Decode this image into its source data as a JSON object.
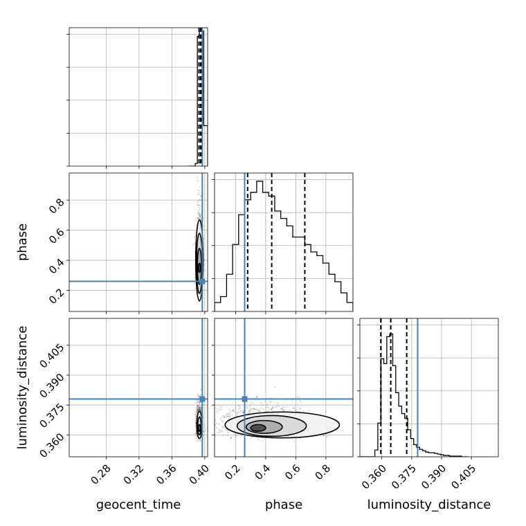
{
  "chart_data": {
    "type": "corner",
    "parameters": [
      "geocent_time",
      "phase",
      "luminosity_distance"
    ],
    "truth_color": "#4682b4",
    "truths": {
      "geocent_time": 0.397,
      "phase": 0.26,
      "luminosity_distance": 0.378
    },
    "quantiles": {
      "geocent_time": [
        0.393,
        0.395,
        0.3965
      ],
      "phase": [
        0.28,
        0.44,
        0.66
      ],
      "luminosity_distance": [
        0.3595,
        0.3645,
        0.3725
      ]
    },
    "panels": [
      {
        "id": "geocent_time-hist",
        "type": "histogram",
        "x": "geocent_time",
        "xlim": [
          0.235,
          0.4035
        ],
        "xticks": [
          0.28,
          0.32,
          0.36,
          0.4
        ],
        "xtick_labels": [
          "0.28",
          "0.32",
          "0.36",
          "0.40"
        ],
        "ymax": 0.0205,
        "bin_edges": [
          0.381,
          0.3835,
          0.386,
          0.3885,
          0.391,
          0.3935,
          0.396,
          0.3985,
          0.401,
          0.4035
        ],
        "counts": [
          0,
          0,
          0,
          0.0004,
          0.0192,
          0.02,
          0.02,
          0.006,
          0.006
        ],
        "quantile_lines": [
          0.393,
          0.395,
          0.3965
        ]
      },
      {
        "id": "phase-hist",
        "type": "histogram",
        "x": "phase",
        "xlim": [
          0.06,
          0.98
        ],
        "xticks": [
          0.2,
          0.4,
          0.6,
          0.8
        ],
        "ymax": 0.186,
        "bin_edges": [
          0.06,
          0.1,
          0.14,
          0.18,
          0.22,
          0.26,
          0.3,
          0.34,
          0.38,
          0.42,
          0.46,
          0.5,
          0.54,
          0.58,
          0.62,
          0.66,
          0.7,
          0.74,
          0.78,
          0.82,
          0.86,
          0.9,
          0.94,
          0.98
        ],
        "counts": [
          0.012,
          0.02,
          0.05,
          0.09,
          0.13,
          0.15,
          0.16,
          0.175,
          0.16,
          0.155,
          0.135,
          0.125,
          0.115,
          0.1,
          0.1,
          0.09,
          0.08,
          0.075,
          0.065,
          0.05,
          0.04,
          0.025,
          0.012
        ],
        "quantile_lines": [
          0.28,
          0.44,
          0.66
        ]
      },
      {
        "id": "luminosity_distance-hist",
        "type": "histogram",
        "x": "luminosity_distance",
        "xlim": [
          0.349,
          0.4185
        ],
        "xticks": [
          0.36,
          0.375,
          0.39,
          0.405
        ],
        "xtick_labels": [
          "0.360",
          "0.375",
          "0.390",
          "0.405"
        ],
        "ymax": 0.0205,
        "bin_edges": [
          0.349,
          0.3505,
          0.352,
          0.3535,
          0.355,
          0.3565,
          0.358,
          0.3595,
          0.361,
          0.3625,
          0.364,
          0.3655,
          0.367,
          0.3685,
          0.37,
          0.3715,
          0.373,
          0.3745,
          0.376,
          0.3775,
          0.379,
          0.3805,
          0.382,
          0.3835,
          0.385,
          0.3865,
          0.388,
          0.3895,
          0.391,
          0.3925,
          0.394,
          0.3955,
          0.397,
          0.3985,
          0.4,
          0.4015,
          0.403
        ],
        "counts": [
          0,
          0,
          0,
          0,
          0,
          0.001,
          0.005,
          0.0145,
          0.0138,
          0.0178,
          0.0182,
          0.0135,
          0.0095,
          0.0075,
          0.0064,
          0.0057,
          0.004,
          0.0027,
          0.0018,
          0.0014,
          0.0011,
          0.0009,
          0.0007,
          0.0006,
          0.0006,
          0.0005,
          0.0004,
          0.0003,
          0.0002,
          0.0002,
          0.0001,
          0.0001,
          0.0001,
          0.0001,
          0,
          0
        ],
        "quantile_lines": [
          0.3595,
          0.3645,
          0.3725
        ]
      },
      {
        "id": "geocent_time-vs-phase",
        "type": "2d",
        "x": "geocent_time",
        "y": "phase",
        "xlim": [
          0.235,
          0.4035
        ],
        "ylim": [
          0.06,
          0.98
        ],
        "yticks": [
          0.2,
          0.4,
          0.6,
          0.8
        ],
        "ytick_labels": [
          "0.2",
          "0.4",
          "0.6",
          "0.8"
        ],
        "center": [
          0.3935,
          0.36
        ],
        "spread": [
          0.0018,
          0.12
        ],
        "contours": [
          {
            "rx": 0.0013,
            "ry": 0.03,
            "cy": 0.35
          },
          {
            "rx": 0.0025,
            "ry": 0.12,
            "cy": 0.36
          },
          {
            "rx": 0.0035,
            "ry": 0.2,
            "cy": 0.38
          },
          {
            "rx": 0.0045,
            "ry": 0.27,
            "cy": 0.4
          }
        ]
      },
      {
        "id": "geocent_time-vs-luminosity_distance",
        "type": "2d",
        "x": "geocent_time",
        "y": "luminosity_distance",
        "xlim": [
          0.235,
          0.4035
        ],
        "ylim": [
          0.349,
          0.4185
        ],
        "yticks": [
          0.36,
          0.375,
          0.39,
          0.405
        ],
        "ytick_labels": [
          "0.360",
          "0.375",
          "0.390",
          "0.405"
        ],
        "center": [
          0.3935,
          0.364
        ],
        "spread": [
          0.0018,
          0.004
        ],
        "contours": [
          {
            "rx": 0.0011,
            "ry": 0.0017,
            "cy": 0.3635
          },
          {
            "rx": 0.002,
            "ry": 0.0045,
            "cy": 0.3645
          },
          {
            "rx": 0.0032,
            "ry": 0.0068,
            "cy": 0.365
          }
        ]
      },
      {
        "id": "phase-vs-luminosity_distance",
        "type": "2d",
        "x": "phase",
        "y": "luminosity_distance",
        "xlim": [
          0.06,
          0.98
        ],
        "ylim": [
          0.349,
          0.4185
        ],
        "center": [
          0.4,
          0.364
        ],
        "spread": [
          0.17,
          0.004
        ],
        "contours": [
          {
            "rx": 0.05,
            "ry": 0.0017,
            "cy": 0.3635,
            "cx": 0.35
          },
          {
            "rx": 0.12,
            "ry": 0.0032,
            "cy": 0.364,
            "cx": 0.39
          },
          {
            "rx": 0.23,
            "ry": 0.0052,
            "cy": 0.3645,
            "cx": 0.44
          },
          {
            "rx": 0.38,
            "ry": 0.0065,
            "cy": 0.365,
            "cx": 0.51
          }
        ]
      }
    ]
  },
  "labels": {
    "x1": "geocent_time",
    "x2": "phase",
    "x3": "luminosity_distance",
    "y2": "phase",
    "y3": "luminosity_distance"
  }
}
